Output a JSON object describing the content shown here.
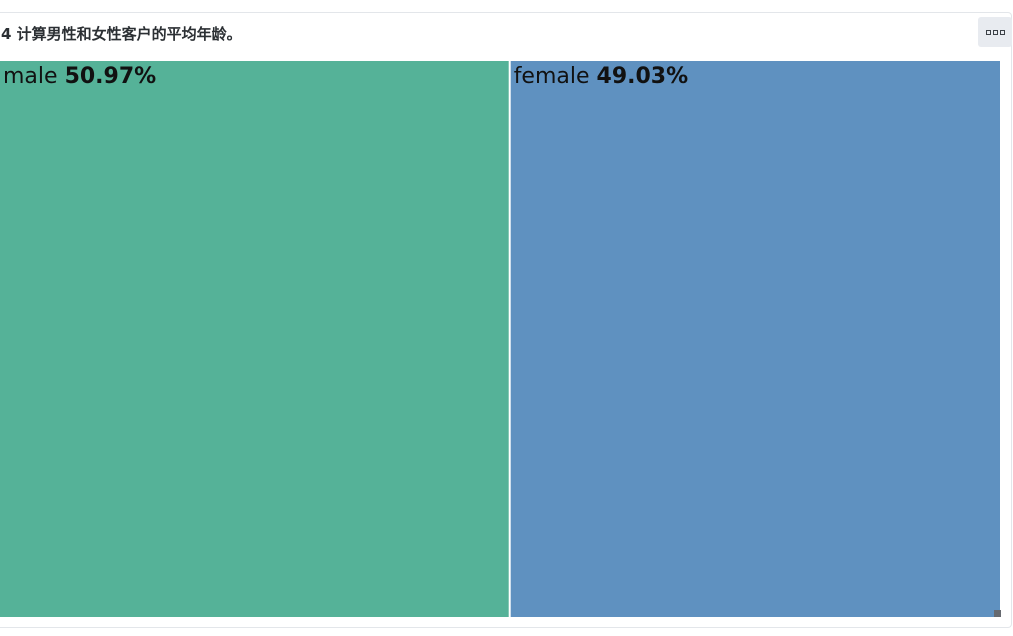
{
  "card": {
    "title": "4 计算男性和女性客户的平均年龄。"
  },
  "icons": {
    "menu": "more-options-icon"
  },
  "colors": {
    "male": "#55b298",
    "female": "#5f91c0",
    "divider": "#ffffff",
    "label_text": "#111111"
  },
  "chart_data": {
    "type": "treemap",
    "title": "",
    "items": [
      {
        "name": "male",
        "value": 50.97,
        "label": "50.97%",
        "color": "#55b298"
      },
      {
        "name": "female",
        "value": 49.03,
        "label": "49.03%",
        "color": "#5f91c0"
      }
    ],
    "unit": "%"
  }
}
